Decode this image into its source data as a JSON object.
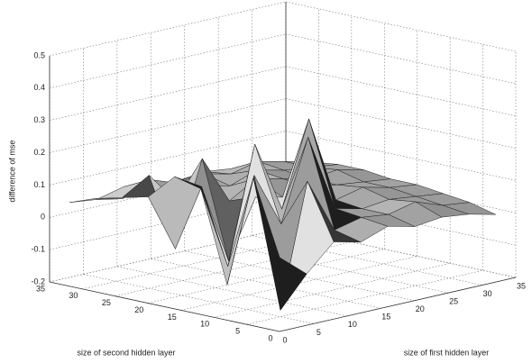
{
  "chart_data": {
    "type": "surface",
    "zlabel": "difference of mse",
    "ylabel": "size of second hidden layer",
    "xlabel": "size of first hidden layer",
    "x": [
      1,
      5,
      9,
      13,
      17,
      21,
      25,
      29,
      33
    ],
    "y": [
      1,
      5,
      9,
      13,
      17,
      21,
      25,
      29,
      33
    ],
    "z": [
      [
        0.02,
        -0.05,
        0.03,
        0.01,
        0.04,
        0.02,
        0.03,
        0.02,
        0
      ],
      [
        0.25,
        -0.18,
        0.2,
        0.03,
        0.05,
        0.04,
        0.06,
        0.03,
        0.02
      ],
      [
        -0.1,
        0.22,
        0.05,
        0.3,
        0.06,
        0.04,
        0.05,
        0.04,
        0.03
      ],
      [
        0.18,
        -0.08,
        0.28,
        0.06,
        0.32,
        0.05,
        0.07,
        0.05,
        0.04
      ],
      [
        0.2,
        0.15,
        -0.1,
        0.08,
        0.06,
        0.07,
        0.06,
        0.05,
        0.04
      ],
      [
        0.12,
        -0.06,
        0.2,
        0.05,
        0.1,
        0.08,
        0.06,
        0.07,
        0.05
      ],
      [
        0.1,
        0.15,
        0.05,
        0.08,
        0.06,
        0.09,
        0.07,
        0.06,
        0.05
      ],
      [
        0.08,
        0.06,
        0.1,
        0.07,
        0.08,
        0.06,
        0.08,
        0.06,
        0.04
      ],
      [
        0.05,
        0.04,
        0.06,
        0.05,
        0.04,
        0.05,
        0.04,
        0.03,
        0.02
      ]
    ],
    "xlim": [
      0,
      35
    ],
    "xticks": [
      0,
      5,
      10,
      15,
      20,
      25,
      30,
      35
    ],
    "ylim": [
      0,
      35
    ],
    "yticks": [
      0,
      5,
      10,
      15,
      20,
      25,
      30,
      35
    ],
    "zlim": [
      -0.2,
      0.5
    ],
    "zticks": [
      -0.2,
      -0.1,
      0,
      0.1,
      0.2,
      0.3,
      0.4,
      0.5
    ],
    "grid": true,
    "color": "#a8a8a8"
  }
}
